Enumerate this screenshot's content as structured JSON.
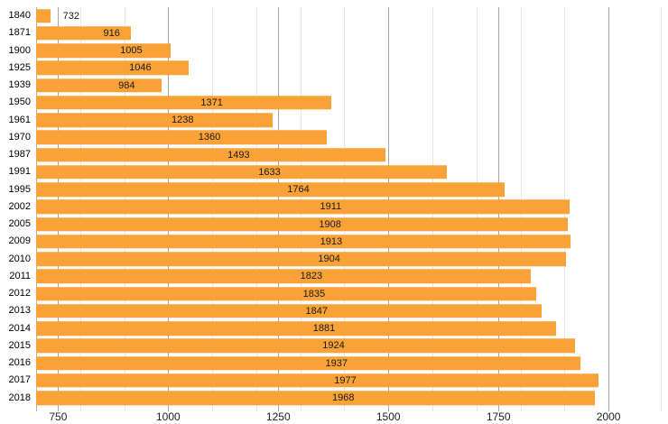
{
  "chart_data": {
    "type": "bar",
    "orientation": "horizontal",
    "title": "",
    "xlabel": "",
    "ylabel": "",
    "categories": [
      "1840",
      "1871",
      "1900",
      "1925",
      "1939",
      "1950",
      "1961",
      "1970",
      "1987",
      "1991",
      "1995",
      "2002",
      "2005",
      "2009",
      "2010",
      "2011",
      "2012",
      "2013",
      "2014",
      "2015",
      "2016",
      "2017",
      "2018"
    ],
    "values": [
      732,
      916,
      1005,
      1046,
      984,
      1371,
      1238,
      1360,
      1493,
      1633,
      1764,
      1911,
      1908,
      1913,
      1904,
      1823,
      1835,
      1847,
      1881,
      1924,
      1937,
      1977,
      1968
    ],
    "value_labels": [
      "732",
      "916",
      "1005",
      "1046",
      "984",
      "1371",
      "1238",
      "1360",
      "1493",
      "1633",
      "1764",
      "1911",
      "1908",
      "1913",
      "1904",
      "1823",
      "1835",
      "1847",
      "1881",
      "1924",
      "1937",
      "1977",
      "1968"
    ],
    "xlim": [
      700,
      2135
    ],
    "x_major_ticks": [
      750,
      1000,
      1250,
      1500,
      1750,
      2000
    ],
    "x_major_tick_labels": [
      "750",
      "1000",
      "1250",
      "1500",
      "1750",
      "2000"
    ],
    "x_minor_gridlines": [
      800,
      900,
      1100,
      1200,
      1300,
      1400,
      1600,
      1700,
      1800,
      1900
    ],
    "grid": true,
    "legend": null,
    "colors": {
      "bar": "#F8A238",
      "value_label": "#1a1a1a",
      "category_label": "#000000",
      "axis_tick_label": "#222222",
      "major_grid": "#a6a6a6",
      "minor_grid": "#e7e7e7",
      "background": "#ffffff"
    }
  }
}
